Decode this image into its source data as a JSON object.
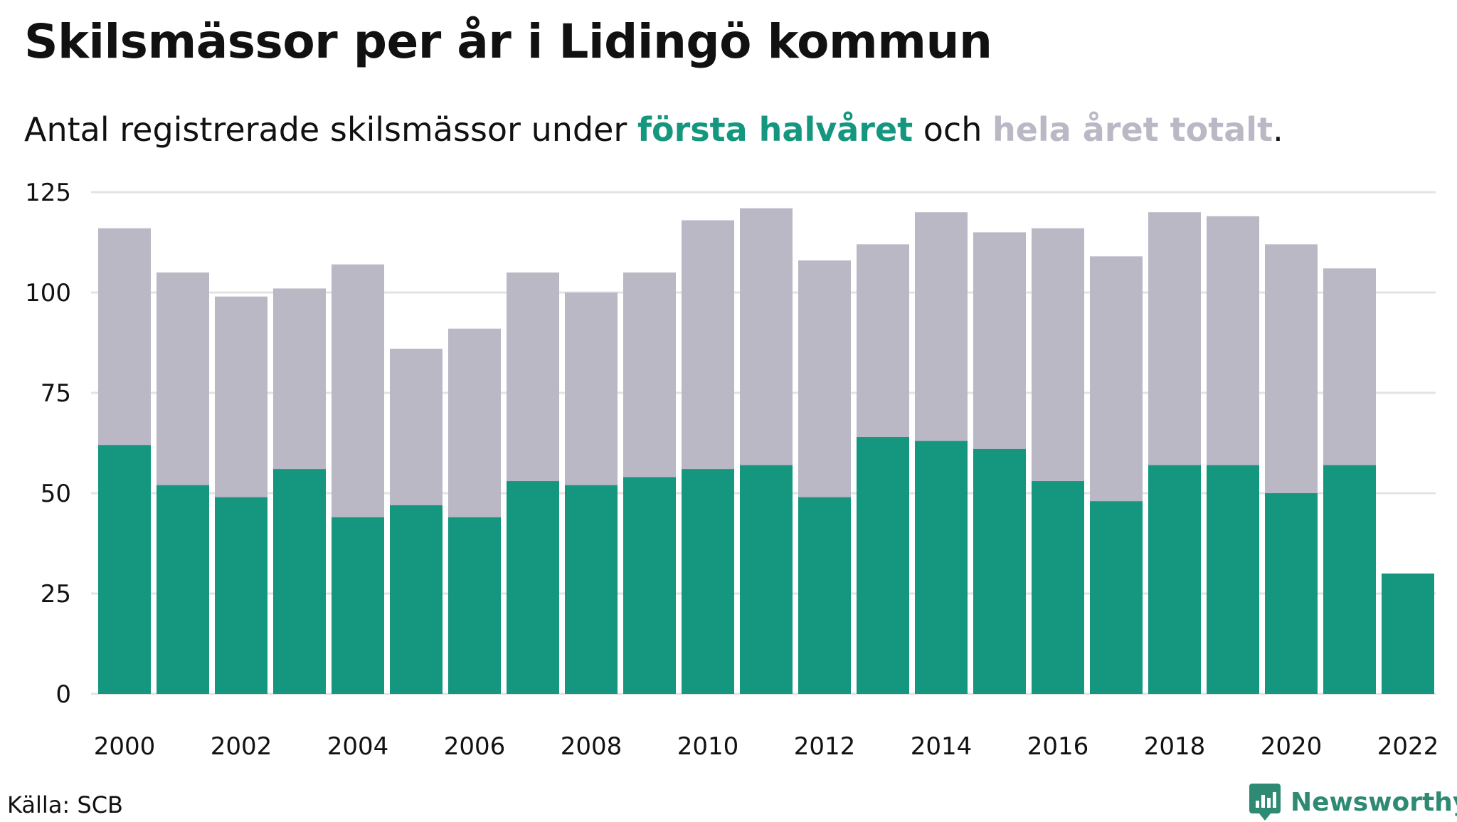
{
  "title": "Skilsmässor per år i Lidingö kommun",
  "subtitle": {
    "prefix": "Antal registrerade skilsmässor under ",
    "highlight_first_half": "första halvåret",
    "middle": " och ",
    "highlight_total": "hela året totalt",
    "suffix": "."
  },
  "source": "Källa: SCB",
  "brand": "Newsworthy",
  "colors": {
    "first_half": "#14967f",
    "total": "#bbb8c6",
    "grid": "#e3e3e3",
    "brand": "#2e8a73"
  },
  "chart_data": {
    "type": "bar",
    "stacking": "overlay",
    "categories": [
      2000,
      2001,
      2002,
      2003,
      2004,
      2005,
      2006,
      2007,
      2008,
      2009,
      2010,
      2011,
      2012,
      2013,
      2014,
      2015,
      2016,
      2017,
      2018,
      2019,
      2020,
      2021,
      2022
    ],
    "x_tick_labels": [
      "2000",
      "2002",
      "2004",
      "2006",
      "2008",
      "2010",
      "2012",
      "2014",
      "2016",
      "2018",
      "2020",
      "2022"
    ],
    "series": [
      {
        "name": "hela året totalt",
        "values": [
          116,
          105,
          99,
          101,
          107,
          86,
          91,
          105,
          100,
          105,
          118,
          121,
          108,
          112,
          120,
          115,
          116,
          109,
          120,
          119,
          112,
          106,
          null
        ]
      },
      {
        "name": "första halvåret",
        "values": [
          62,
          52,
          49,
          56,
          44,
          47,
          44,
          53,
          52,
          54,
          56,
          57,
          49,
          64,
          63,
          61,
          53,
          48,
          57,
          57,
          50,
          57,
          30
        ]
      }
    ],
    "ylim": [
      0,
      125
    ],
    "y_ticks": [
      0,
      25,
      50,
      75,
      100,
      125
    ],
    "xlabel": "",
    "ylabel": "",
    "grid": "horizontal"
  }
}
